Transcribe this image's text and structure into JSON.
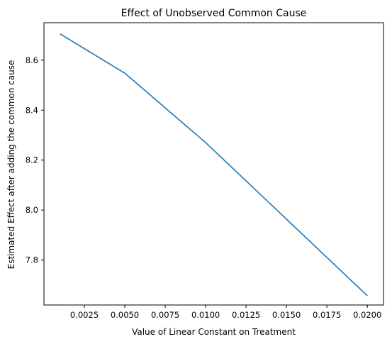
{
  "chart_data": {
    "type": "line",
    "title": "Effect of Unobserved Common Cause",
    "xlabel": "Value of Linear Constant on Treatment",
    "ylabel": "Estimated Effect after adding the common cause",
    "xlim": [
      0.0,
      0.021
    ],
    "ylim": [
      7.62,
      8.75
    ],
    "x_ticks": [
      0.0025,
      0.005,
      0.0075,
      0.01,
      0.0125,
      0.015,
      0.0175,
      0.02
    ],
    "x_tick_labels": [
      "0.0025",
      "0.0050",
      "0.0075",
      "0.0100",
      "0.0125",
      "0.0150",
      "0.0175",
      "0.0200"
    ],
    "y_ticks": [
      7.8,
      8.0,
      8.2,
      8.4,
      8.6
    ],
    "y_tick_labels": [
      "7.8",
      "8.0",
      "8.2",
      "8.4",
      "8.6"
    ],
    "reference_line": {
      "y": 8.75,
      "style": "dashed",
      "color": "#000000"
    },
    "grid": false,
    "series": [
      {
        "color": "#1f77b4",
        "x": [
          0.001,
          0.005,
          0.01,
          0.02
        ],
        "y": [
          8.705,
          8.548,
          8.27,
          7.657
        ]
      }
    ]
  }
}
